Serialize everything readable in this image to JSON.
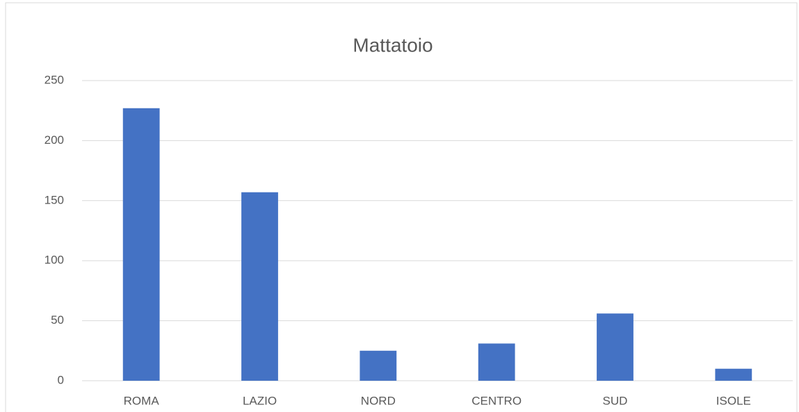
{
  "chart_data": {
    "type": "bar",
    "title": "Mattatoio",
    "categories": [
      "ROMA",
      "LAZIO",
      "NORD",
      "CENTRO",
      "SUD",
      "ISOLE"
    ],
    "values": [
      227,
      157,
      25,
      31,
      56,
      10
    ],
    "color": "#4472c4",
    "ylim": [
      0,
      250
    ],
    "yticks": [
      0,
      50,
      100,
      150,
      200,
      250
    ],
    "grid": true
  }
}
